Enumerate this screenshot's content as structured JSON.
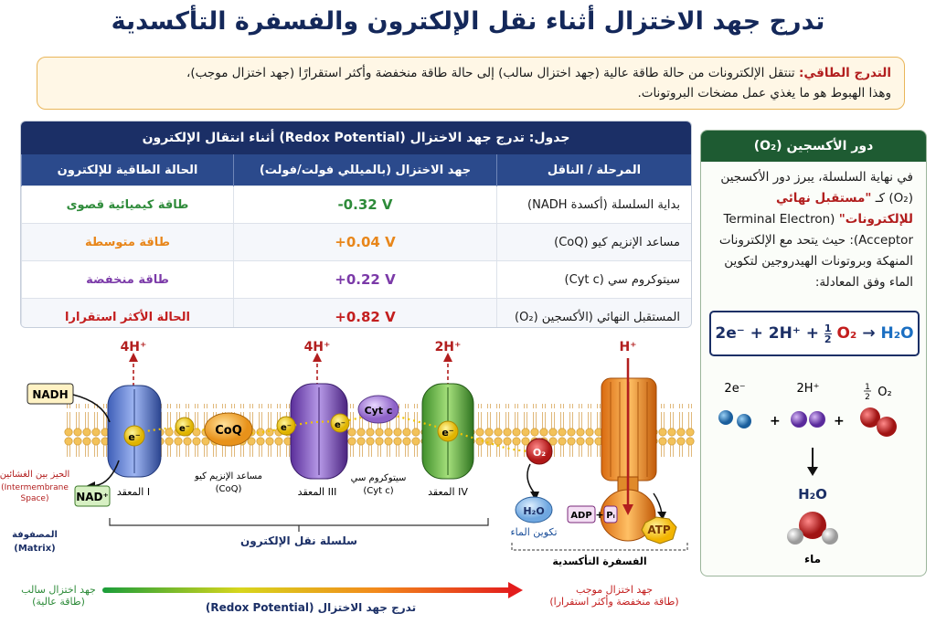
{
  "title": "تدرج جهد الاختزال أثناء نقل الإلكترون والفسفرة التأكسدية",
  "intro": {
    "label": "التدرج الطاقي:",
    "text": " تنتقل الإلكترونات من حالة طاقة عالية (جهد اختزال سالب) إلى حالة طاقة منخفضة وأكثر استقرارًا (جهد اختزال موجب)،",
    "text2": "وهذا الهبوط هو ما يغذي عمل مضخات البروتونات."
  },
  "table": {
    "title": "جدول: تدرج جهد الاختزال (Redox Potential)  أثناء انتقال الإلكترون",
    "headers": [
      "المرحلة / الناقل",
      "جهد الاختزال (بالميللي فولت/فولت)",
      "الحالة الطاقية للإلكترون"
    ],
    "rows": [
      {
        "stage": "بداية السلسلة (أكسدة NADH)",
        "potential": "-0.32 V",
        "state": "طاقة كيميائية قصوى",
        "color": "#2e8b3a"
      },
      {
        "stage": "مساعد الإنزيم كيو (CoQ)",
        "potential": "+0.04 V",
        "state": "طاقة متوسطة",
        "color": "#e8861a"
      },
      {
        "stage": "سيتوكروم سي (Cyt c)",
        "potential": "+0.22 V",
        "state": "طاقة منخفضة",
        "color": "#7b3aa8"
      },
      {
        "stage": "المستقبل النهائي (الأكسجين (O₂)",
        "potential": "+0.82 V",
        "state": "الحالة الأكثر استقرارا",
        "color": "#c31e1e"
      }
    ]
  },
  "oxygen": {
    "title": "دور الأكسجين (O₂)",
    "p1": "في نهاية السلسلة، يبرز دور الأكسجين (O₂) كـ ",
    "highlight": "\"مستقبل نهائي للإلكترونات\"",
    "p2": " (Terminal Electron Acceptor): حيث يتحد مع الإلكترونات المنهكة وبروتونات الهيدروجين لتكوين الماء وفق المعادلة:",
    "eq_e": "2e⁻ + 2H⁺ +",
    "eq_num": "1",
    "eq_den": "2",
    "eq_o2": "O₂",
    "eq_arrow": "→",
    "eq_h2o": "H₂O",
    "mol_e": "2e⁻",
    "mol_h": "2H⁺",
    "mol_o2": "O₂",
    "mol_h2o": "H₂O",
    "water": "ماء"
  },
  "diagram": {
    "nadh": "NADH",
    "nad": "NAD⁺",
    "complex1": "المعقد I",
    "coq": "CoQ",
    "coq_label1": "مساعد الإنزيم كيو",
    "coq_label2": "(CoQ)",
    "complex3": "المعقد III",
    "cytc": "Cyt c",
    "cytc_label1": "سيتوكروم سي",
    "cytc_label2": "(Cyt c)",
    "complex4": "المعقد IV",
    "h1": "4H⁺",
    "h3": "4H⁺",
    "h4": "2H⁺",
    "h5": "H⁺",
    "electron": "e⁻",
    "o2": "O₂",
    "h2o": "H₂O",
    "water_form": "تكوين الماء",
    "adp": "ADP",
    "pi": "Pᵢ",
    "plus": "+",
    "atp": "ATP",
    "ims1": "الحيز بين الغشائين",
    "ims2": "(Intermembrane",
    "ims3": "Space)",
    "matrix1": "المصفوفة",
    "matrix2": "(Matrix)",
    "etc_label": "سلسلة نقل الإلكترون",
    "oxphos_label": "الفسفرة التأكسدية"
  },
  "bottom": {
    "neg1": "جهد اختزال سالب",
    "neg2": "(طاقة عالية)",
    "pos1": "جهد اختزال موجب",
    "pos2": "(طاقة منخفضة وأكثر استقرارا)",
    "axis": "تدرج جهد الاختزال (Redox Potential)"
  }
}
